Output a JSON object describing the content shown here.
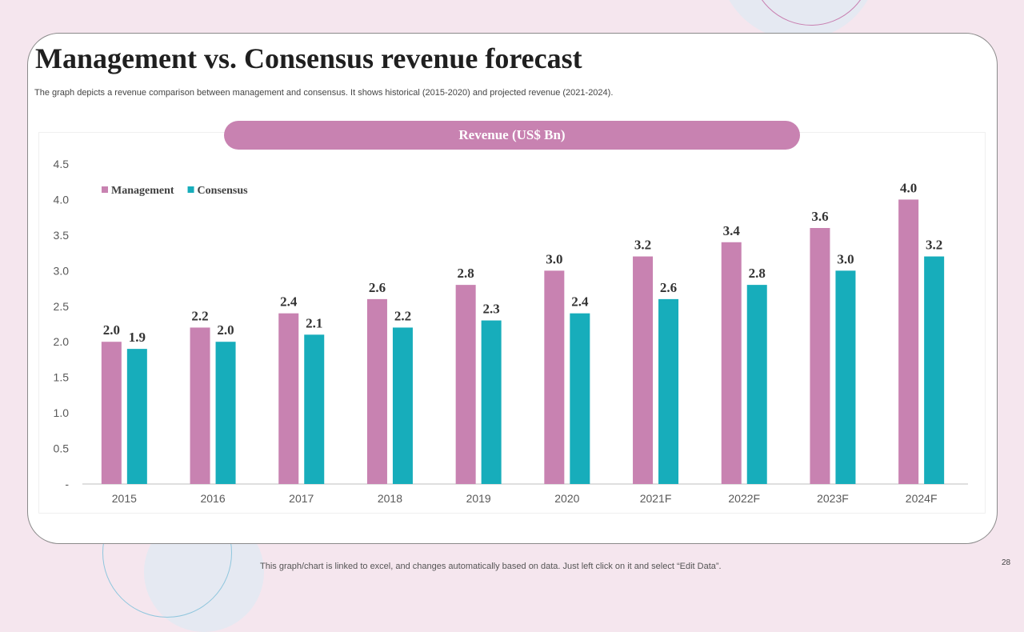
{
  "slide": {
    "title": "Management vs. Consensus revenue forecast",
    "subtitle": "The graph depicts a revenue comparison between management and consensus. It shows historical (2015-2020) and projected revenue (2021-2024).",
    "footer_note": "This graph/chart is linked to excel,  and changes automatically based on data. Just left click on it and select “Edit Data”.",
    "page_number": "28"
  },
  "chart_data": {
    "type": "bar",
    "title": "Revenue (US$ Bn)",
    "categories": [
      "2015",
      "2016",
      "2017",
      "2018",
      "2019",
      "2020",
      "2021F",
      "2022F",
      "2023F",
      "2024F"
    ],
    "series": [
      {
        "name": "Management",
        "color": "#c882b1",
        "values": [
          2.0,
          2.2,
          2.4,
          2.6,
          2.8,
          3.0,
          3.2,
          3.4,
          3.6,
          4.0
        ]
      },
      {
        "name": "Consensus",
        "color": "#17adbb",
        "values": [
          1.9,
          2.0,
          2.1,
          2.2,
          2.3,
          2.4,
          2.6,
          2.8,
          3.0,
          3.2
        ]
      }
    ],
    "yticks": [
      "-",
      "0.5",
      "1.0",
      "1.5",
      "2.0",
      "2.5",
      "3.0",
      "3.5",
      "4.0",
      "4.5"
    ],
    "ylim": [
      0,
      4.5
    ],
    "xlabel": "",
    "ylabel": "",
    "grid": false,
    "legend_position": "top-left"
  },
  "colors": {
    "accent_pink": "#c882b1",
    "accent_teal": "#17adbb",
    "background": "#f5e6ee"
  }
}
